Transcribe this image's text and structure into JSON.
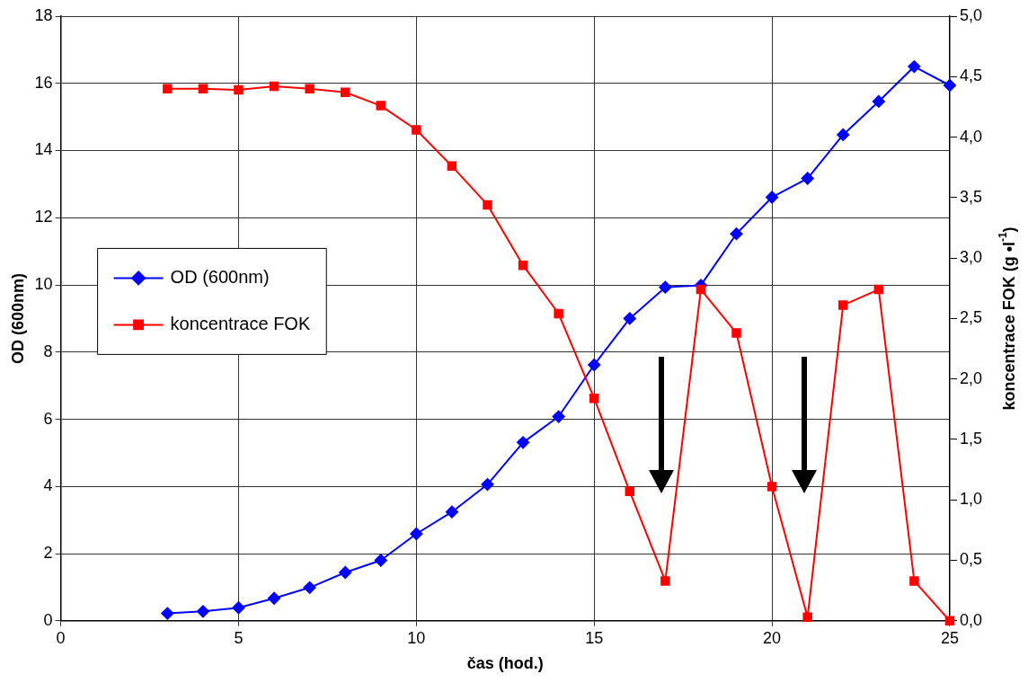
{
  "chart_data": {
    "type": "line",
    "xlabel": "čas (hod.)",
    "ylabel": "OD (600nm)",
    "y2label": "koncentrace FOK (g •l$^{-1}$)",
    "x": [
      3,
      4,
      5,
      6,
      7,
      8,
      9,
      10,
      11,
      12,
      13,
      14,
      15,
      16,
      17,
      18,
      19,
      20,
      21,
      22,
      23,
      24,
      25
    ],
    "series": [
      {
        "name": "OD (600nm)",
        "color": "#0000ff",
        "marker": "diamond",
        "values": [
          0.22,
          0.28,
          0.39,
          0.67,
          0.99,
          1.44,
          1.8,
          2.59,
          3.24,
          4.06,
          5.31,
          6.08,
          7.62,
          9.0,
          9.93,
          9.99,
          11.52,
          12.61,
          13.17,
          14.47,
          15.46,
          16.5,
          15.94
        ]
      },
      {
        "name": "koncentrace FOK",
        "color": "#ff0000",
        "marker": "square",
        "axis": "y2",
        "values": [
          4.4,
          4.4,
          4.39,
          4.42,
          4.4,
          4.37,
          4.26,
          4.06,
          3.76,
          3.44,
          2.94,
          2.54,
          1.84,
          1.07,
          0.33,
          2.74,
          2.38,
          1.11,
          0.03,
          2.61,
          2.74,
          0.33,
          0.0
        ]
      }
    ],
    "xlim": [
      0,
      25
    ],
    "xticks": [
      0,
      5,
      10,
      15,
      20,
      25
    ],
    "ylim": [
      0,
      18
    ],
    "yticks": [
      0,
      2,
      4,
      6,
      8,
      10,
      12,
      14,
      16,
      18
    ],
    "y2lim": [
      0,
      5
    ],
    "y2ticks": [
      {
        "value": 0,
        "label": "0,0"
      },
      {
        "value": 0.5,
        "label": "0,5"
      },
      {
        "value": 1,
        "label": "1,0"
      },
      {
        "value": 1.5,
        "label": "1,5"
      },
      {
        "value": 2,
        "label": "2,0"
      },
      {
        "value": 2.5,
        "label": "2,5"
      },
      {
        "value": 3,
        "label": "3,0"
      },
      {
        "value": 3.5,
        "label": "3,5"
      },
      {
        "value": 4,
        "label": "4,0"
      },
      {
        "value": 4.5,
        "label": "4,5"
      },
      {
        "value": 5,
        "label": "5,0"
      }
    ],
    "grid": true,
    "legend": "center left",
    "line_style": "solid"
  }
}
